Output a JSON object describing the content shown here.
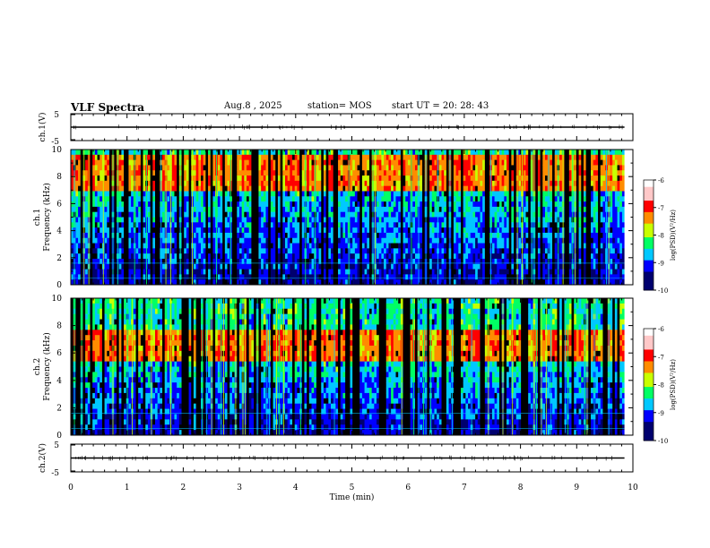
{
  "header": {
    "title": "VLF Spectra",
    "date": "Aug.8 , 2025",
    "station": "station= MOS",
    "start": "start UT = 20: 28: 43"
  },
  "chart_data": [
    {
      "type": "line",
      "panel": "ch1-waveform",
      "ylabel": "ch.1(V)",
      "yticks": [
        "5",
        "-5"
      ],
      "ylim": [
        -5,
        5
      ],
      "level": 0
    },
    {
      "type": "heatmap",
      "panel": "ch1-spectrogram",
      "ylabel": "ch.1 Frequency (kHz)",
      "ylim": [
        0,
        10
      ],
      "yticks": [
        "0",
        "2",
        "4",
        "6",
        "8",
        "10"
      ],
      "xlim": [
        0,
        9.85
      ],
      "intense_band_khz": [
        7,
        9.5
      ],
      "colorbar": {
        "label": "log(PSD)(V²/Hz)",
        "range": [
          -10,
          -6
        ],
        "ticks": [
          "-6",
          "-7",
          "-8",
          "-9",
          "-10"
        ]
      }
    },
    {
      "type": "heatmap",
      "panel": "ch2-spectrogram",
      "ylabel": "ch.2 Frequency (kHz)",
      "ylim": [
        0,
        10
      ],
      "yticks": [
        "0",
        "2",
        "4",
        "6",
        "8",
        "10"
      ],
      "xlim": [
        0,
        9.85
      ],
      "intense_band_khz": [
        5.5,
        7.5
      ],
      "colorbar": {
        "label": "log(PSD)(V²/Hz)",
        "range": [
          -10,
          -6
        ],
        "ticks": [
          "-6",
          "-7",
          "-8",
          "-9",
          "-10"
        ]
      }
    },
    {
      "type": "line",
      "panel": "ch2-waveform",
      "ylabel": "ch.2(V)",
      "yticks": [
        "5",
        "-5"
      ],
      "ylim": [
        -5,
        5
      ],
      "level": 0
    }
  ],
  "xaxis": {
    "label": "Time (min)",
    "range": [
      0,
      10
    ],
    "ticks": [
      "0",
      "1",
      "2",
      "3",
      "4",
      "5",
      "6",
      "7",
      "8",
      "9",
      "10"
    ]
  },
  "colormap": [
    "#000000",
    "#00006e",
    "#0000ff",
    "#00c8ff",
    "#00ff64",
    "#c8ff00",
    "#ff8c00",
    "#ff0000",
    "#ffc8c8",
    "#ffffff"
  ]
}
